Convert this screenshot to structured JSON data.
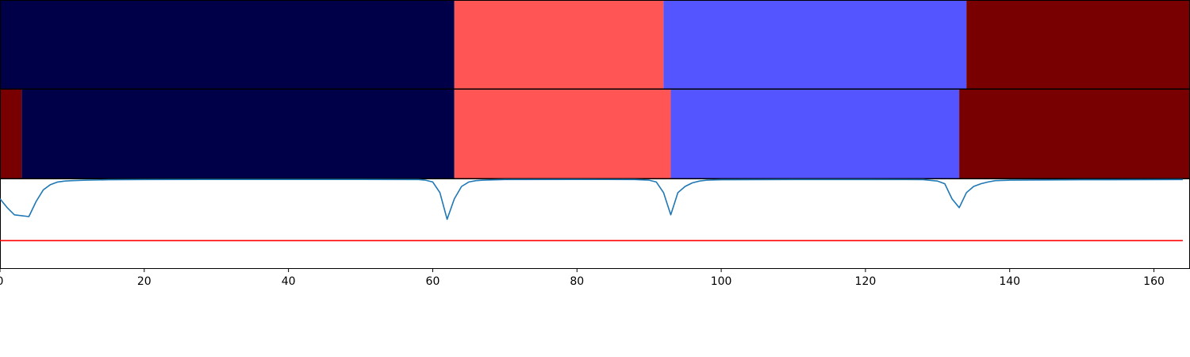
{
  "chart_data": [
    {
      "type": "heatmap",
      "segments": [
        {
          "start": 0,
          "end": 63,
          "color": "#000048"
        },
        {
          "start": 63,
          "end": 92,
          "color": "#ff5555"
        },
        {
          "start": 92,
          "end": 134,
          "color": "#5555ff"
        },
        {
          "start": 134,
          "end": 165,
          "color": "#780000"
        }
      ]
    },
    {
      "type": "heatmap",
      "segments": [
        {
          "start": 0,
          "end": 3,
          "color": "#780000"
        },
        {
          "start": 3,
          "end": 63,
          "color": "#000048"
        },
        {
          "start": 63,
          "end": 93,
          "color": "#ff5555"
        },
        {
          "start": 93,
          "end": 133,
          "color": "#5555ff"
        },
        {
          "start": 133,
          "end": 165,
          "color": "#780000"
        }
      ]
    },
    {
      "type": "line",
      "xlim": [
        0,
        165
      ],
      "ylim": [
        0,
        1
      ],
      "xticks": [
        0,
        20,
        40,
        60,
        80,
        100,
        120,
        140,
        160
      ],
      "tick_labels": [
        "0",
        "20",
        "40",
        "60",
        "80",
        "100",
        "120",
        "140",
        "160"
      ],
      "series": [
        {
          "color": "#1f77b4",
          "x": [
            0,
            1,
            2,
            4,
            5,
            6,
            7,
            8,
            9,
            10,
            12,
            15,
            20,
            30,
            40,
            50,
            58,
            59,
            60,
            61,
            62,
            63,
            64,
            65,
            66,
            67,
            70,
            80,
            88,
            90,
            91,
            92,
            93,
            94,
            95,
            96,
            97,
            98,
            100,
            110,
            120,
            128,
            130,
            131,
            132,
            133,
            134,
            135,
            136,
            137,
            138,
            140,
            150,
            164
          ],
          "y": [
            0.78,
            0.68,
            0.6,
            0.58,
            0.75,
            0.88,
            0.94,
            0.97,
            0.98,
            0.985,
            0.99,
            0.995,
            0.997,
            0.998,
            0.998,
            0.998,
            0.997,
            0.99,
            0.97,
            0.85,
            0.55,
            0.78,
            0.92,
            0.97,
            0.985,
            0.99,
            0.997,
            0.998,
            0.997,
            0.99,
            0.97,
            0.85,
            0.6,
            0.85,
            0.92,
            0.96,
            0.98,
            0.99,
            0.995,
            0.997,
            0.997,
            0.996,
            0.98,
            0.95,
            0.78,
            0.68,
            0.85,
            0.92,
            0.95,
            0.97,
            0.985,
            0.99,
            0.995,
            0.997
          ]
        },
        {
          "color": "#ff0000",
          "x": [
            0,
            164
          ],
          "y": [
            0.31,
            0.31
          ]
        }
      ]
    }
  ]
}
